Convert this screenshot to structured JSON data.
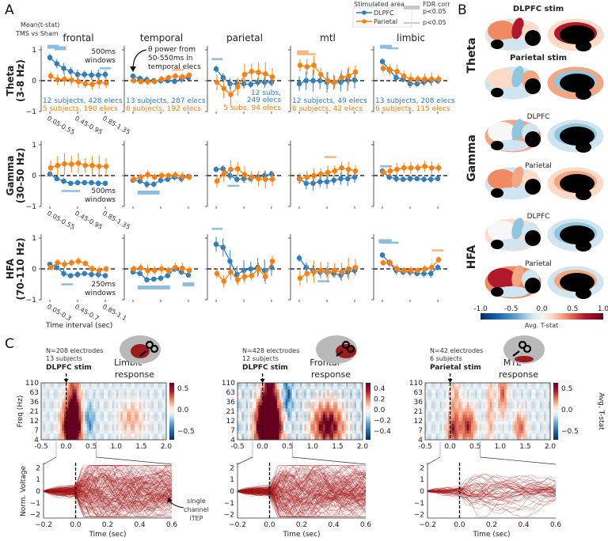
{
  "colors": {
    "dlpfc": "#2f7fbf",
    "parietal": "#ff7f0e",
    "dlpfc_sig": "#8fbde0",
    "parietal_sig": "#fdb57c",
    "trace": "#a31515"
  },
  "panel_a": {
    "label": "A",
    "ylabel_lines": [
      "Mean(t-stat)",
      "TMS vs Sham"
    ],
    "regions": [
      "frontal",
      "temporal",
      "parietal",
      "mtl",
      "limbic"
    ],
    "bands": [
      {
        "name": "Theta",
        "range": "(3-8 Hz)"
      },
      {
        "name": "Gamma",
        "range": "(30-50 Hz)"
      },
      {
        "name": "HFA",
        "range": "(70-110 Hz)"
      }
    ],
    "yticks": [
      "1",
      "0",
      "−1"
    ],
    "xtick_labels": [
      [
        "0.05-0.55",
        "0.45-0.95",
        "0.85-1.35"
      ],
      [
        "0.05-0.55",
        "0.45-0.95",
        "0.85-1.35"
      ],
      [
        "0.05-0.3",
        "0.45-0.7",
        "0.85-1.1"
      ]
    ],
    "window_notes": [
      [
        "500ms",
        "windows"
      ],
      [
        "500ms",
        "windows"
      ],
      [
        "250ms",
        "windows"
      ]
    ],
    "xlabel": "Time interval (sec)",
    "arrow_note": [
      "θ power from",
      "50-550ms in",
      "temporal elecs"
    ],
    "counts": {
      "frontal": [
        "12 subjects, 428 elecs",
        "5 subjects, 190 elecs"
      ],
      "temporal": [
        "13 subjects, 287 elecs",
        "6 subjects, 192 elecs"
      ],
      "parietal": [
        "12 subs,",
        "249 elecs",
        "5 subs, 94 elecs"
      ],
      "mtl": [
        "12 subjects, 49 elecs",
        "6 subjects, 42 elecs"
      ],
      "limbic": [
        "13 subjects, 208 elecs",
        "6 subjects, 115 elecs"
      ]
    },
    "legend": {
      "title": "Stimulated area",
      "dlpfc": "DLPFC",
      "parietal": "Parietal",
      "fdr_label": "FDR corr",
      "fdr_p": "p<0.05",
      "p_label": "p<0.05"
    }
  },
  "chart_data": {
    "type": "line",
    "title": "Mean(t-stat) TMS vs Sham by region, band and time interval",
    "ylim": [
      -1,
      1
    ],
    "n_intervals": 9,
    "series_names": [
      "DLPFC",
      "Parietal"
    ],
    "cells": [
      [
        {
          "D": [
            0.75,
            0.55,
            0.4,
            0.3,
            0.2,
            0.2,
            0.18,
            0.18,
            0.2
          ],
          "P": [
            0.15,
            0.03,
            0.05,
            0.02,
            -0.03,
            -0.1,
            -0.12,
            -0.05,
            -0.08
          ],
          "eD": 0.15,
          "eP": 0.18,
          "sig": [
            [
              "D",
              0,
              1,
              1.1,
              1
            ],
            [
              "D",
              1,
              2,
              1.05,
              1
            ],
            [
              "D",
              7.5,
              8.5,
              0.4,
              0
            ]
          ]
        },
        {
          "D": [
            0.15,
            0.07,
            0.03,
            0,
            0,
            0,
            -0.02,
            0.05,
            0.1
          ],
          "P": [
            0,
            -0.03,
            -0.03,
            -0.03,
            0.05,
            0.1,
            0.15,
            0.12,
            0.18
          ],
          "eD": 0.1,
          "eP": 0.1,
          "sig": [
            [
              "P",
              6,
              7,
              0.35,
              0
            ]
          ]
        },
        {
          "D": [
            0.38,
            0.1,
            -0.1,
            -0.1,
            -0.1,
            -0.12,
            -0.05,
            -0.05,
            -0.05
          ],
          "P": [
            -0.05,
            -0.25,
            -0.45,
            -0.2,
            0.2,
            0.3,
            0.27,
            0.22,
            0.12
          ],
          "eD": 0.15,
          "eP": 0.32,
          "sig": [
            [
              "D",
              -0.3,
              0.6,
              0.7,
              0
            ]
          ]
        },
        {
          "D": [
            -0.1,
            0,
            0,
            0,
            -0.05,
            -0.05,
            -0.05,
            0.02,
            0.02
          ],
          "P": [
            0.5,
            0.45,
            0.5,
            0.2,
            0,
            -0.05,
            0.1,
            0.15,
            0.28
          ],
          "eD": 0.3,
          "eP": 0.25,
          "sig": [
            [
              "P",
              0,
              1,
              0.92,
              1
            ],
            [
              "P",
              0,
              2,
              0.86,
              0
            ]
          ]
        },
        {
          "D": [
            0.62,
            0.35,
            0.1,
            0.05,
            -0.1,
            -0.1,
            -0.05,
            0,
            0
          ],
          "P": [
            0.4,
            0.35,
            0.3,
            0.15,
            0.05,
            0.05,
            0.05,
            0.05,
            0.05
          ],
          "eD": 0.12,
          "eP": 0.18,
          "sig": [
            [
              "D",
              0,
              1,
              1.1,
              1
            ],
            [
              "D",
              1,
              2,
              1.05,
              0
            ]
          ]
        }
      ],
      [
        {
          "D": [
            0.05,
            -0.1,
            -0.18,
            -0.25,
            -0.23,
            -0.23,
            -0.23,
            -0.25,
            -0.25
          ],
          "P": [
            0.25,
            0.33,
            0.38,
            0.37,
            0.4,
            0.33,
            0.33,
            0.3,
            0.3
          ],
          "eD": 0.08,
          "eP": 0.3,
          "sig": [
            [
              "D",
              2,
              4,
              -0.5,
              0
            ]
          ]
        },
        {
          "D": [
            -0.15,
            -0.18,
            -0.28,
            -0.28,
            -0.15,
            -0.12,
            -0.05,
            -0.1,
            -0.03
          ],
          "P": [
            -0.12,
            -0.05,
            0.03,
            -0.05,
            0,
            0,
            0.02,
            -0.03,
            -0.05
          ],
          "eD": 0.1,
          "eP": 0.12,
          "sig": [
            [
              "D",
              1,
              3.5,
              -0.55,
              1
            ]
          ]
        },
        {
          "D": [
            0.2,
            0.22,
            0,
            -0.12,
            -0.1,
            -0.1,
            -0.05,
            0,
            0.05
          ],
          "P": [
            -0.18,
            0.05,
            0.2,
            0.22,
            0.03,
            -0.05,
            -0.1,
            -0.12,
            -0.12
          ],
          "eD": 0.12,
          "eP": 0.25,
          "sig": [
            [
              "D",
              2,
              3,
              -0.33,
              0
            ]
          ]
        },
        {
          "D": [
            -0.1,
            -0.25,
            -0.25,
            -0.2,
            -0.2,
            -0.15,
            -0.1,
            -0.1,
            -0.05
          ],
          "P": [
            -0.1,
            -0.05,
            0,
            0.05,
            0.1,
            0.15,
            0.25,
            0.2,
            0.15
          ],
          "eD": 0.2,
          "eP": 0.2,
          "sig": [
            [
              "P",
              4,
              5,
              0.6,
              0
            ]
          ]
        },
        {
          "D": [
            0.15,
            -0.05,
            -0.1,
            -0.12,
            -0.1,
            -0.1,
            -0.12,
            -0.12,
            -0.1
          ],
          "P": [
            0.1,
            0.15,
            0.2,
            0.25,
            0.25,
            0.25,
            0.3,
            0.25,
            0.25
          ],
          "eD": 0.1,
          "eP": 0.18,
          "sig": [
            [
              "D",
              0,
              1,
              0.3,
              0
            ]
          ]
        }
      ],
      [
        {
          "D": [
            0.15,
            0.05,
            -0.15,
            -0.22,
            -0.18,
            -0.15,
            -0.18,
            -0.18,
            -0.22
          ],
          "P": [
            0.05,
            0.2,
            0.15,
            0.2,
            0.25,
            0.18,
            0,
            -0.05,
            0
          ],
          "eD": 0.1,
          "eP": 0.12,
          "sig": [
            [
              "D",
              2,
              3,
              -0.5,
              0
            ]
          ]
        },
        {
          "D": [
            -0.1,
            -0.15,
            -0.35,
            -0.33,
            -0.3,
            -0.22,
            0,
            -0.1,
            -0.2
          ],
          "P": [
            0,
            0.03,
            -0.05,
            -0.05,
            0,
            -0.05,
            0.05,
            0.02,
            -0.05
          ],
          "eD": 0.08,
          "eP": 0.15,
          "sig": [
            [
              "D",
              1,
              5,
              -0.6,
              1
            ],
            [
              "D",
              7.5,
              8.5,
              -0.5,
              1
            ]
          ]
        },
        {
          "D": [
            0.8,
            0.7,
            0.25,
            -0.18,
            -0.05,
            0,
            0.05,
            -0.05,
            0.05
          ],
          "P": [
            -0.15,
            -0.4,
            -0.1,
            -0.35,
            -0.25,
            -0.22,
            0,
            -0.25,
            0.25
          ],
          "eD": 0.3,
          "eP": 0.2,
          "sig": [
            [
              "D",
              -0.3,
              0.6,
              1.3,
              0
            ]
          ]
        },
        {
          "D": [
            0.35,
            0.05,
            -0.05,
            -0.1,
            -0.1,
            -0.15,
            -0.2,
            -0.1,
            -0.05
          ],
          "P": [
            -0.3,
            -0.15,
            -0.1,
            -0.05,
            -0.1,
            -0.05,
            -0.1,
            0,
            0.05
          ],
          "eD": 0.15,
          "eP": 0.3,
          "sig": [
            [
              "D",
              3,
              4,
              -0.4,
              0
            ]
          ]
        },
        {
          "D": [
            0.45,
            0.2,
            -0.05,
            -0.1,
            -0.1,
            -0.15,
            -0.15,
            -0.15,
            0.05
          ],
          "P": [
            0.2,
            0.2,
            0,
            -0.05,
            -0.05,
            -0.05,
            0,
            0.05,
            0.3
          ],
          "eD": 0.12,
          "eP": 0.12,
          "sig": [
            [
              "D",
              -0.2,
              1,
              0.9,
              1
            ],
            [
              "D",
              0,
              2,
              0.85,
              0
            ],
            [
              "P",
              7.5,
              8.5,
              0.6,
              0
            ]
          ]
        }
      ]
    ]
  },
  "panel_b": {
    "label": "B",
    "rows": [
      {
        "band": "Theta",
        "titles": [
          "DLPFC stim",
          "Parietal stim"
        ],
        "bold": true
      },
      {
        "band": "Gamma",
        "titles": [
          "DLPFC",
          "Parietal"
        ],
        "bold": false
      },
      {
        "band": "HFA",
        "titles": [
          "DLPFC",
          "Parietal"
        ],
        "bold": false
      }
    ],
    "colorbar": {
      "ticks": [
        "-1.0",
        "-0.5",
        "0.0",
        "0.5",
        "1.0"
      ],
      "label": "Avg. T-stat"
    }
  },
  "panel_c": {
    "label": "C",
    "freq_label": "Freq (Hz)",
    "freq_ticks": [
      "110",
      "63",
      "36",
      "21",
      "12",
      "7",
      "4"
    ],
    "time_ticks": [
      "-0.5",
      "0.0",
      "0.5",
      "1.0",
      "1.5",
      "2.0"
    ],
    "volt_label": "Norm. Voltage",
    "volt_ticks": [
      "2",
      "1",
      "0",
      "−1",
      "−2"
    ],
    "trace_time_ticks": [
      "−0.2",
      "0.0",
      "0.2",
      "0.4",
      "0.6"
    ],
    "time_label": "Time (sec)",
    "itep_note": [
      "single",
      "channel",
      "iTEP"
    ],
    "cbar_label": "Avg. T-stat",
    "panels": [
      {
        "n": "N=208 electrodes",
        "subjects": "13 subjects",
        "stim": "DLPFC stim",
        "response": [
          "Limbic",
          "response"
        ],
        "cbar_ticks": [
          "0.5",
          "0.0",
          "−0.5"
        ],
        "n_traces": 208,
        "blobs": [
          [
            0.12,
            1.5,
            1.6,
            0.12,
            1.6
          ],
          [
            0.15,
            4.5,
            0.6,
            0.08,
            2.5
          ],
          [
            0.45,
            2,
            -0.35,
            0.08,
            1.2
          ],
          [
            1.3,
            2.2,
            0.25,
            0.18,
            1.2
          ]
        ]
      },
      {
        "n": "N=428 electrodes",
        "subjects": "12 subjects",
        "stim": "DLPFC stim",
        "response": [
          "Frontal",
          "response"
        ],
        "cbar_ticks": [
          "0.4",
          "0.2",
          "0.0",
          "−0.2",
          "−0.4"
        ],
        "n_traces": 300,
        "blobs": [
          [
            0.12,
            1.5,
            1.8,
            0.14,
            1.8
          ],
          [
            0.15,
            4.5,
            0.6,
            0.08,
            2.5
          ],
          [
            0.5,
            4.5,
            -0.25,
            0.06,
            1.5
          ],
          [
            1.3,
            1.5,
            0.6,
            0.2,
            1.5
          ]
        ]
      },
      {
        "n": "N=42 electrodes",
        "subjects": "6 subjects",
        "stim": "Parietal stim",
        "response": [
          "MTL",
          "response"
        ],
        "cbar_ticks": [
          "0.5",
          "0.0",
          "−0.5"
        ],
        "n_traces": 42,
        "blobs": [
          [
            0.05,
            1,
            0.5,
            0.08,
            1
          ],
          [
            0.35,
            1.5,
            0.7,
            0.1,
            1.2
          ],
          [
            0.1,
            3,
            0.3,
            0.08,
            3
          ],
          [
            1.05,
            5,
            0.5,
            0.06,
            1.5
          ],
          [
            1.4,
            1.3,
            0.5,
            0.08,
            1
          ],
          [
            0.8,
            3,
            0.25,
            0.06,
            3
          ]
        ]
      }
    ]
  }
}
